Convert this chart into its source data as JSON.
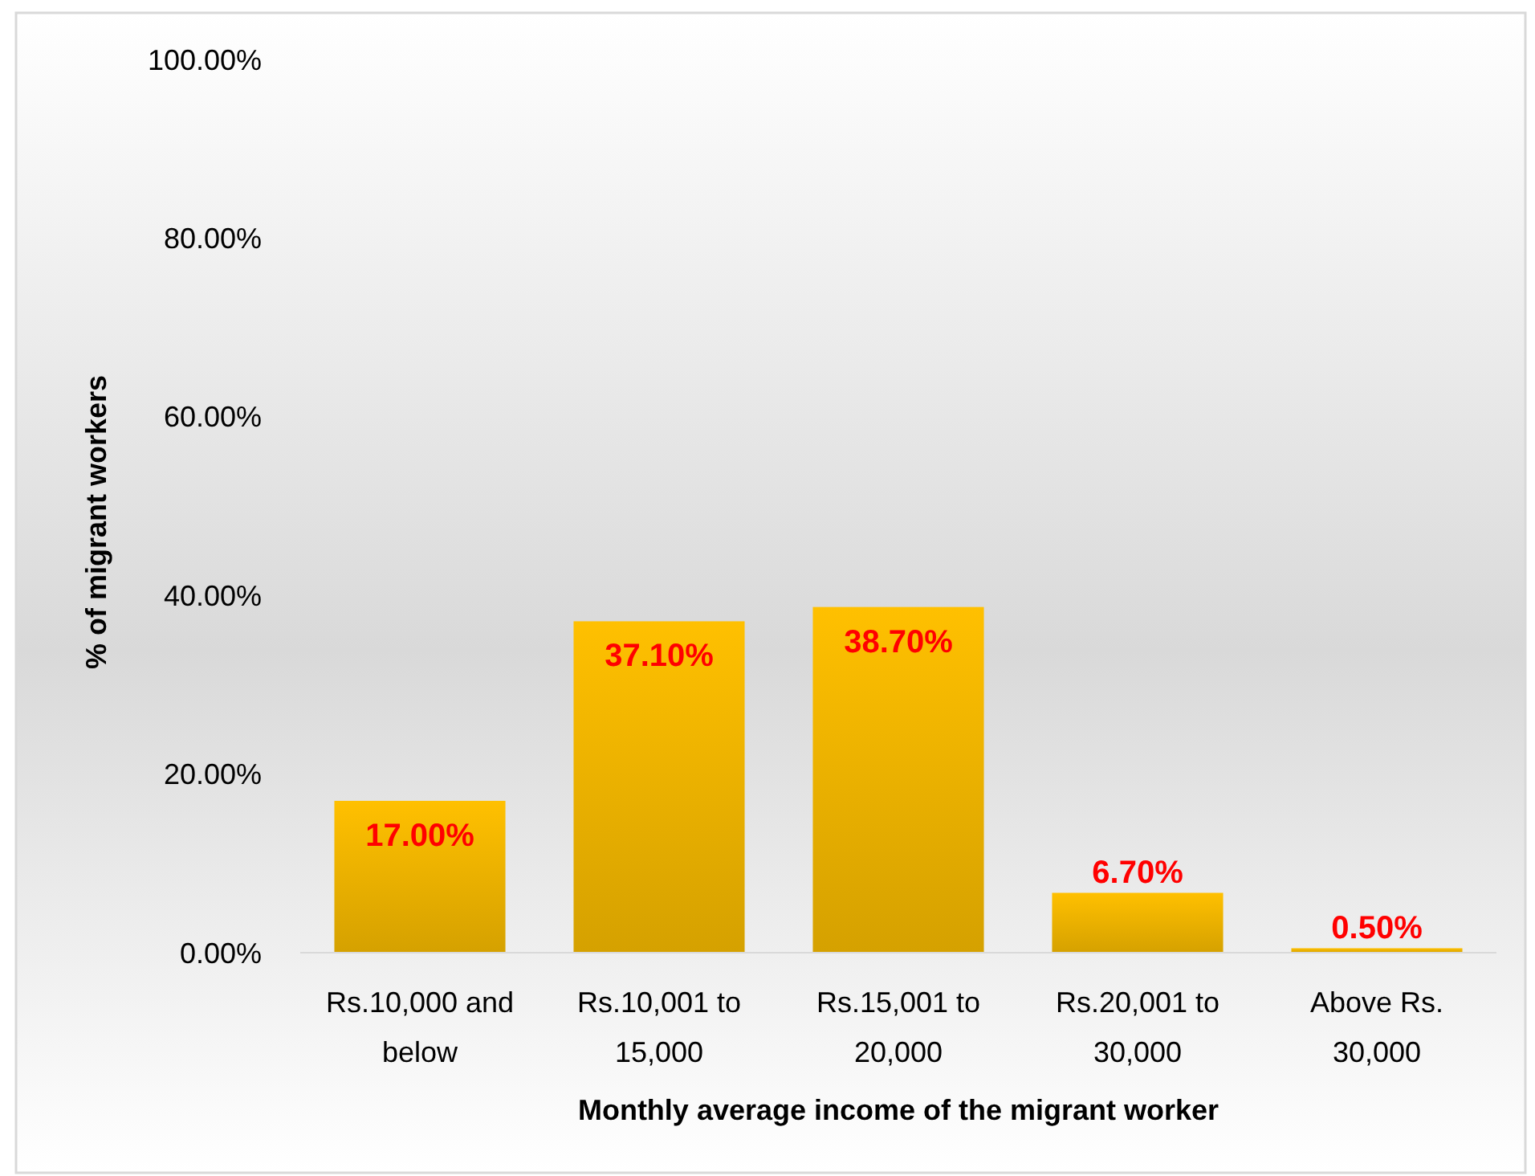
{
  "chart_data": {
    "type": "bar",
    "xlabel": "Monthly average income of the migrant worker",
    "ylabel": "% of migrant workers",
    "categories": [
      "Rs.10,000 and below",
      "Rs.10,001 to 15,000",
      "Rs.15,001 to 20,000",
      "Rs.20,001 to 30,000",
      "Above Rs. 30,000"
    ],
    "values": [
      17.0,
      37.1,
      38.7,
      6.7,
      0.5
    ],
    "value_labels": [
      "17.00%",
      "37.10%",
      "38.70%",
      "6.70%",
      "0.50%"
    ],
    "color": "#ffc000",
    "ylim": [
      0,
      100
    ],
    "yticks": [
      {
        "value": 0,
        "label": "0.00%"
      },
      {
        "value": 20,
        "label": "20.00%"
      },
      {
        "value": 40,
        "label": "40.00%"
      },
      {
        "value": 60,
        "label": "60.00%"
      },
      {
        "value": 80,
        "label": "80.00%"
      },
      {
        "value": 100,
        "label": "100.00%"
      }
    ]
  }
}
